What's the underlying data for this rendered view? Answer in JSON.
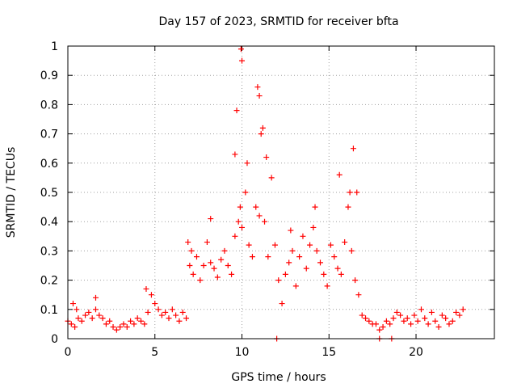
{
  "chart_data": {
    "type": "scatter",
    "title": "Day 157 of 2023, SRMTID for receiver bfta",
    "xlabel": "GPS time / hours",
    "ylabel": "SRMTID / TECUs",
    "xlim": [
      0,
      24.5
    ],
    "ylim": [
      0,
      1
    ],
    "x_ticks": [
      0,
      5,
      10,
      15,
      20
    ],
    "y_ticks": [
      0,
      0.1,
      0.2,
      0.3,
      0.4,
      0.5,
      0.6,
      0.7,
      0.8,
      0.9,
      1
    ],
    "x_tick_labels": [
      "0",
      "5",
      "10",
      "15",
      "20"
    ],
    "y_tick_labels": [
      "0",
      "0.1",
      "0.2",
      "0.3",
      "0.4",
      "0.5",
      "0.6",
      "0.7",
      "0.8",
      "0.9",
      "1"
    ],
    "grid": true,
    "marker": "plus",
    "series_color": "#ff0000",
    "series": [
      {
        "name": "SRMTID",
        "x": [
          0.0,
          0.2,
          0.4,
          0.6,
          0.8,
          1.0,
          1.2,
          1.4,
          1.6,
          1.8,
          2.0,
          2.2,
          2.4,
          2.6,
          2.8,
          3.0,
          3.2,
          3.4,
          3.6,
          3.8,
          4.0,
          4.2,
          4.4,
          4.6,
          4.8,
          5.0,
          5.2,
          5.4,
          5.6,
          5.8,
          6.0,
          6.2,
          6.4,
          6.6,
          6.8,
          7.0,
          7.2,
          7.4,
          7.6,
          7.8,
          8.0,
          8.2,
          8.4,
          8.6,
          8.8,
          9.0,
          9.2,
          9.4,
          9.6,
          9.8,
          9.9,
          10.0,
          10.2,
          10.4,
          10.6,
          10.8,
          11.0,
          11.1,
          11.3,
          11.5,
          11.7,
          11.9,
          12.1,
          12.3,
          12.5,
          12.7,
          12.9,
          13.1,
          13.3,
          13.5,
          13.7,
          13.9,
          14.1,
          14.3,
          14.5,
          14.7,
          14.9,
          15.1,
          15.3,
          15.5,
          15.7,
          15.9,
          16.1,
          16.3,
          16.5,
          16.7,
          16.9,
          17.1,
          17.3,
          17.5,
          17.7,
          17.9,
          18.1,
          18.3,
          18.5,
          18.7,
          18.9,
          19.1,
          19.3,
          19.5,
          19.7,
          19.9,
          20.1,
          20.3,
          20.5,
          20.7,
          20.9,
          21.1,
          21.3,
          21.5,
          21.7,
          21.9,
          22.1,
          22.3,
          22.5,
          22.7,
          9.95,
          10.0,
          9.7,
          10.9,
          11.0,
          11.2,
          11.4,
          10.3,
          16.4,
          16.2,
          15.6,
          9.6,
          8.2,
          12.8,
          14.2,
          16.6,
          4.5,
          1.6,
          0.3,
          0.5,
          6.9,
          7.1,
          12.0,
          17.9,
          18.6
        ],
        "y": [
          0.06,
          0.05,
          0.04,
          0.07,
          0.06,
          0.08,
          0.09,
          0.07,
          0.1,
          0.08,
          0.07,
          0.05,
          0.06,
          0.04,
          0.03,
          0.04,
          0.05,
          0.04,
          0.06,
          0.05,
          0.07,
          0.06,
          0.05,
          0.09,
          0.15,
          0.12,
          0.1,
          0.08,
          0.09,
          0.07,
          0.1,
          0.08,
          0.06,
          0.09,
          0.07,
          0.25,
          0.22,
          0.28,
          0.2,
          0.25,
          0.33,
          0.26,
          0.24,
          0.21,
          0.27,
          0.3,
          0.25,
          0.22,
          0.35,
          0.4,
          0.45,
          0.38,
          0.5,
          0.32,
          0.28,
          0.45,
          0.42,
          0.7,
          0.4,
          0.28,
          0.55,
          0.32,
          0.2,
          0.12,
          0.22,
          0.26,
          0.3,
          0.18,
          0.28,
          0.35,
          0.24,
          0.32,
          0.38,
          0.3,
          0.26,
          0.22,
          0.18,
          0.32,
          0.28,
          0.24,
          0.22,
          0.33,
          0.45,
          0.3,
          0.2,
          0.15,
          0.08,
          0.07,
          0.06,
          0.05,
          0.05,
          0.03,
          0.04,
          0.06,
          0.05,
          0.07,
          0.09,
          0.08,
          0.06,
          0.07,
          0.05,
          0.08,
          0.06,
          0.1,
          0.07,
          0.05,
          0.09,
          0.06,
          0.04,
          0.08,
          0.07,
          0.05,
          0.06,
          0.09,
          0.08,
          0.1,
          0.99,
          0.95,
          0.78,
          0.86,
          0.83,
          0.72,
          0.62,
          0.6,
          0.65,
          0.5,
          0.56,
          0.63,
          0.41,
          0.37,
          0.45,
          0.5,
          0.17,
          0.14,
          0.12,
          0.1,
          0.33,
          0.3,
          0.0,
          0.0,
          0.0
        ]
      }
    ]
  }
}
